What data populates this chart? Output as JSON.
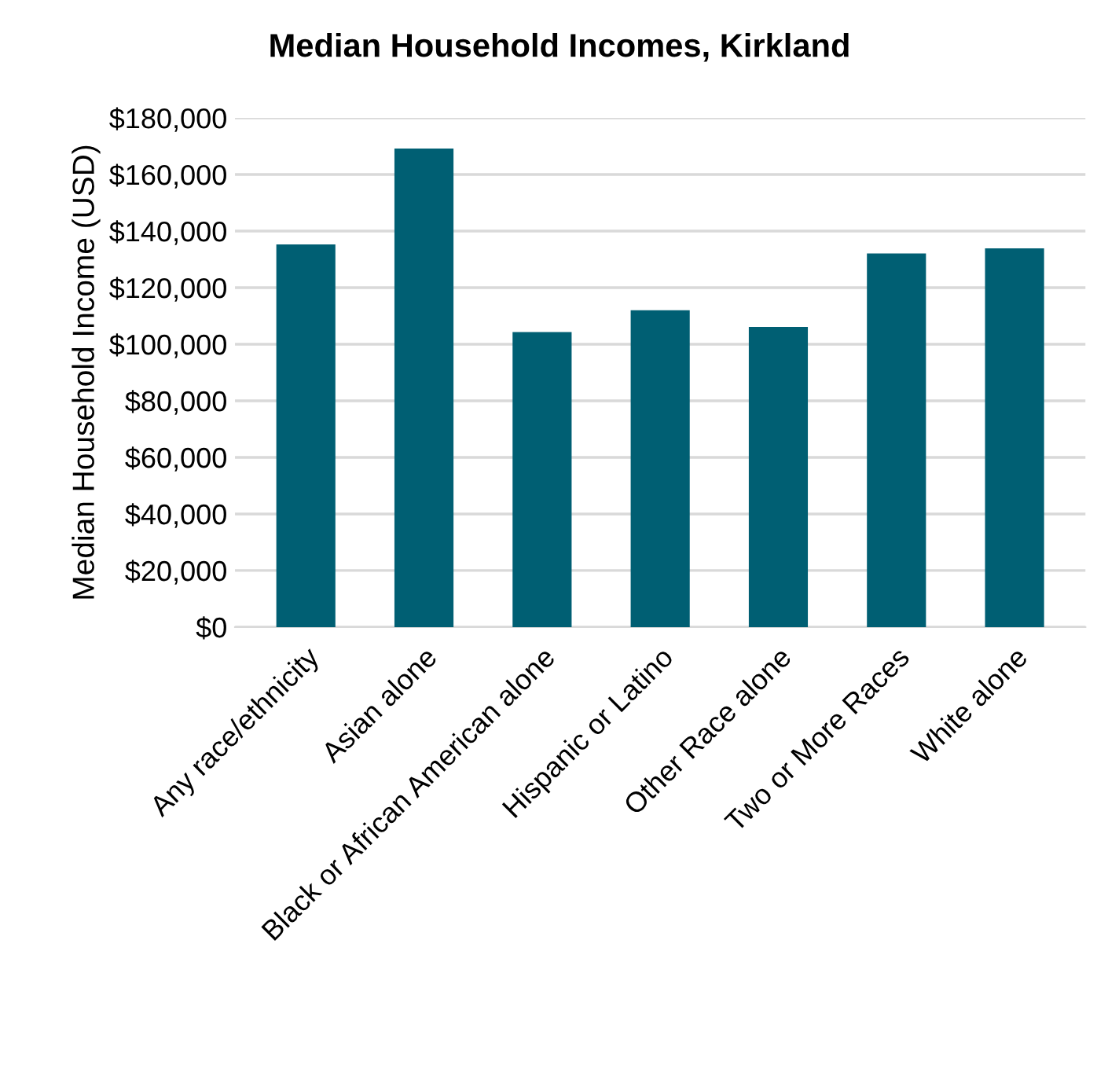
{
  "chart_data": {
    "type": "bar",
    "title": "Median Household Incomes, Kirkland",
    "ylabel": "Median Household Income (USD)",
    "categories": [
      "Any race/ethnicity",
      "Asian alone",
      "Black or African American alone",
      "Hispanic or Latino",
      "Other Race alone",
      "Two or More Races",
      "White alone"
    ],
    "values": [
      135300,
      169200,
      104300,
      112000,
      106100,
      132100,
      133900
    ],
    "color": "#005f73",
    "ylim": [
      0,
      180000
    ],
    "yticks": [
      {
        "value": 0,
        "label": "$0"
      },
      {
        "value": 20000,
        "label": "$20,000"
      },
      {
        "value": 40000,
        "label": "$40,000"
      },
      {
        "value": 60000,
        "label": "$60,000"
      },
      {
        "value": 80000,
        "label": "$80,000"
      },
      {
        "value": 100000,
        "label": "$100,000"
      },
      {
        "value": 120000,
        "label": "$120,000"
      },
      {
        "value": 140000,
        "label": "$140,000"
      },
      {
        "value": 160000,
        "label": "$160,000"
      },
      {
        "value": 180000,
        "label": "$180,000"
      }
    ],
    "grid": "y"
  }
}
